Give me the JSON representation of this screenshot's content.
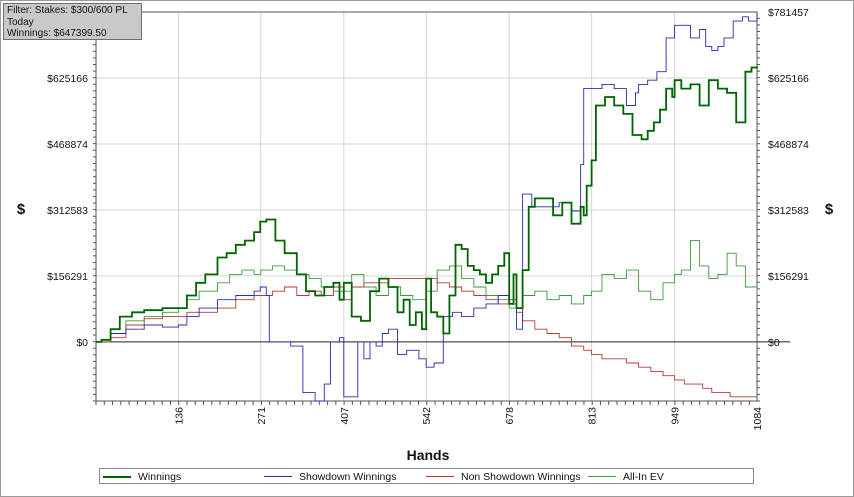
{
  "filter": {
    "line1": "Filter: Stakes: $300/600 PL",
    "line2": "Today",
    "line3": "Winnings: $647399.50"
  },
  "chart_data": {
    "type": "line",
    "xlabel": "Hands",
    "ylabel": "$",
    "xlim": [
      1,
      1084
    ],
    "ylim": [
      -140000,
      781457
    ],
    "x_ticks": [
      "136",
      "271",
      "407",
      "542",
      "678",
      "813",
      "949",
      "1084"
    ],
    "x_tick_values": [
      136,
      271,
      407,
      542,
      678,
      813,
      949,
      1084
    ],
    "y_ticks": [
      "$0",
      "$156291",
      "$312583",
      "$468874",
      "$625166",
      "$781457"
    ],
    "y_tick_values": [
      0,
      156291,
      312583,
      468874,
      625166,
      781457
    ],
    "legend_position": "bottom",
    "series": [
      {
        "name": "Winnings",
        "color": "#006400",
        "x": [
          1,
          10,
          25,
          40,
          60,
          80,
          110,
          136,
          150,
          165,
          180,
          200,
          215,
          230,
          245,
          260,
          270,
          280,
          295,
          310,
          330,
          345,
          360,
          375,
          390,
          400,
          407,
          420,
          435,
          450,
          465,
          480,
          495,
          505,
          515,
          525,
          535,
          542,
          550,
          560,
          570,
          580,
          590,
          600,
          610,
          620,
          630,
          640,
          650,
          660,
          670,
          678,
          685,
          690,
          700,
          710,
          720,
          735,
          750,
          765,
          780,
          795,
          800,
          805,
          813,
          820,
          835,
          850,
          865,
          880,
          895,
          905,
          915,
          925,
          935,
          945,
          949,
          960,
          975,
          990,
          1005,
          1020,
          1035,
          1050,
          1065,
          1075,
          1084
        ],
        "values": [
          0,
          5000,
          30000,
          60000,
          70000,
          75000,
          80000,
          80000,
          110000,
          140000,
          160000,
          200000,
          210000,
          230000,
          240000,
          260000,
          285000,
          290000,
          240000,
          210000,
          160000,
          120000,
          110000,
          130000,
          140000,
          100000,
          140000,
          60000,
          50000,
          120000,
          150000,
          130000,
          70000,
          100000,
          40000,
          70000,
          30000,
          150000,
          70000,
          60000,
          20000,
          110000,
          230000,
          220000,
          180000,
          170000,
          160000,
          140000,
          160000,
          180000,
          210000,
          90000,
          160000,
          80000,
          170000,
          320000,
          340000,
          340000,
          300000,
          330000,
          280000,
          320000,
          300000,
          370000,
          430000,
          560000,
          580000,
          560000,
          540000,
          490000,
          480000,
          500000,
          520000,
          550000,
          600000,
          580000,
          620000,
          600000,
          610000,
          560000,
          620000,
          600000,
          590000,
          520000,
          640000,
          650000,
          647399
        ]
      },
      {
        "name": "Showdown Winnings",
        "color": "#2b2bb5",
        "x": [
          1,
          10,
          25,
          50,
          80,
          110,
          136,
          150,
          170,
          200,
          230,
          260,
          270,
          280,
          285,
          300,
          320,
          340,
          360,
          375,
          385,
          400,
          407,
          420,
          430,
          440,
          450,
          460,
          470,
          480,
          495,
          510,
          530,
          542,
          555,
          570,
          585,
          600,
          620,
          640,
          660,
          678,
          690,
          700,
          715,
          735,
          760,
          780,
          795,
          800,
          813,
          830,
          850,
          870,
          885,
          890,
          905,
          920,
          935,
          949,
          960,
          975,
          990,
          1000,
          1010,
          1020,
          1030,
          1045,
          1060,
          1070,
          1084
        ],
        "values": [
          0,
          5000,
          20000,
          30000,
          40000,
          35000,
          40000,
          60000,
          80000,
          100000,
          110000,
          120000,
          130000,
          110000,
          0,
          0,
          -10000,
          -120000,
          -140000,
          -100000,
          0,
          10000,
          -130000,
          -130000,
          0,
          -40000,
          0,
          -10000,
          20000,
          30000,
          -30000,
          -20000,
          -40000,
          -60000,
          -50000,
          60000,
          70000,
          60000,
          80000,
          90000,
          110000,
          90000,
          30000,
          350000,
          320000,
          320000,
          330000,
          310000,
          420000,
          600000,
          600000,
          610000,
          600000,
          560000,
          590000,
          610000,
          620000,
          640000,
          720000,
          750000,
          750000,
          720000,
          740000,
          700000,
          690000,
          700000,
          720000,
          760000,
          770000,
          760000,
          780000
        ]
      },
      {
        "name": "Non Showdown Winnings",
        "color": "#b83a3a",
        "x": [
          1,
          10,
          25,
          50,
          80,
          110,
          136,
          150,
          170,
          200,
          230,
          260,
          271,
          290,
          310,
          330,
          350,
          370,
          390,
          407,
          420,
          440,
          460,
          480,
          500,
          520,
          542,
          560,
          580,
          600,
          620,
          640,
          660,
          678,
          690,
          700,
          720,
          740,
          760,
          780,
          800,
          813,
          830,
          850,
          870,
          890,
          910,
          930,
          949,
          965,
          980,
          995,
          1010,
          1025,
          1040,
          1055,
          1070,
          1084
        ],
        "values": [
          0,
          0,
          10000,
          40000,
          55000,
          60000,
          60000,
          70000,
          70000,
          80000,
          100000,
          110000,
          110000,
          120000,
          130000,
          110000,
          120000,
          110000,
          130000,
          100000,
          130000,
          140000,
          140000,
          150000,
          150000,
          150000,
          150000,
          140000,
          130000,
          120000,
          110000,
          100000,
          90000,
          100000,
          70000,
          50000,
          30000,
          20000,
          10000,
          -10000,
          -20000,
          -30000,
          -40000,
          -40000,
          -50000,
          -60000,
          -70000,
          -80000,
          -90000,
          -100000,
          -100000,
          -110000,
          -120000,
          -120000,
          -130000,
          -130000,
          -130000,
          -130000
        ]
      },
      {
        "name": "All-In EV",
        "color": "#3c9a3c",
        "x": [
          1,
          10,
          25,
          50,
          80,
          110,
          136,
          150,
          170,
          200,
          220,
          240,
          260,
          271,
          290,
          310,
          330,
          350,
          370,
          390,
          407,
          420,
          440,
          460,
          480,
          500,
          520,
          542,
          560,
          580,
          600,
          620,
          640,
          660,
          678,
          690,
          700,
          720,
          740,
          760,
          780,
          800,
          813,
          830,
          850,
          870,
          890,
          910,
          930,
          949,
          960,
          975,
          990,
          1005,
          1020,
          1035,
          1050,
          1065,
          1084
        ],
        "values": [
          0,
          5000,
          20000,
          50000,
          60000,
          70000,
          80000,
          100000,
          120000,
          140000,
          160000,
          170000,
          160000,
          170000,
          180000,
          170000,
          160000,
          150000,
          130000,
          120000,
          120000,
          160000,
          130000,
          110000,
          130000,
          110000,
          100000,
          120000,
          170000,
          180000,
          150000,
          130000,
          110000,
          100000,
          80000,
          80000,
          110000,
          120000,
          100000,
          110000,
          90000,
          110000,
          120000,
          160000,
          150000,
          170000,
          120000,
          100000,
          140000,
          160000,
          170000,
          240000,
          180000,
          150000,
          160000,
          210000,
          180000,
          130000,
          110000
        ]
      }
    ]
  }
}
